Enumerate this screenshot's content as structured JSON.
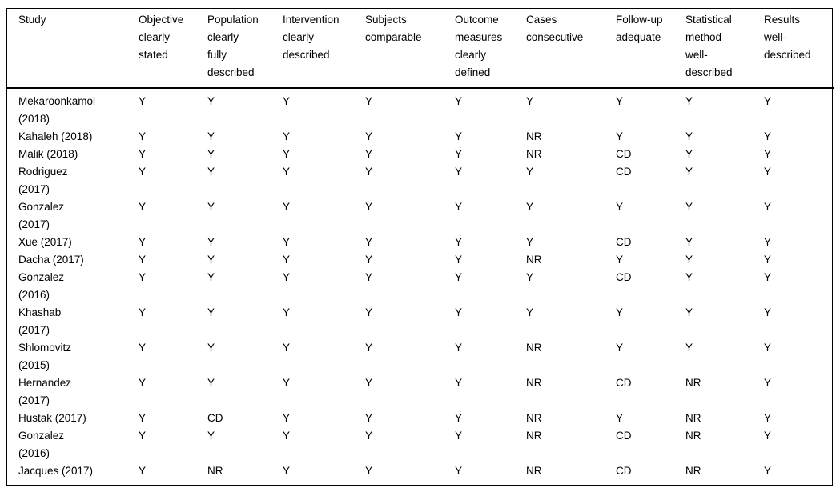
{
  "page": {
    "background_color": "#ffffff",
    "text_color": "#000000",
    "rule_color": "#000000"
  },
  "table": {
    "columns": [
      "Study",
      "Objective\nclearly\nstated",
      "Population\nclearly\nfully\ndescribed",
      "Intervention\nclearly\ndescribed",
      "Subjects\ncomparable",
      "Outcome\nmeasures\nclearly\ndefined",
      "Cases\nconsecutive",
      "Follow-up\nadequate",
      "Statistical\nmethod\nwell-\ndescribed",
      "Results\nwell-\ndescribed"
    ],
    "rows": [
      {
        "study": "Mekaroonkamol\n(2018)",
        "ratings": [
          "Y",
          "Y",
          "Y",
          "Y",
          "Y",
          "Y",
          "Y",
          "Y",
          "Y"
        ]
      },
      {
        "study": "Kahaleh (2018)",
        "ratings": [
          "Y",
          "Y",
          "Y",
          "Y",
          "Y",
          "NR",
          "Y",
          "Y",
          "Y"
        ]
      },
      {
        "study": "Malik (2018)",
        "ratings": [
          "Y",
          "Y",
          "Y",
          "Y",
          "Y",
          "NR",
          "CD",
          "Y",
          "Y"
        ]
      },
      {
        "study": "Rodriguez\n(2017)",
        "ratings": [
          "Y",
          "Y",
          "Y",
          "Y",
          "Y",
          "Y",
          "CD",
          "Y",
          "Y"
        ]
      },
      {
        "study": "Gonzalez\n(2017)",
        "ratings": [
          "Y",
          "Y",
          "Y",
          "Y",
          "Y",
          "Y",
          "Y",
          "Y",
          "Y"
        ]
      },
      {
        "study": "Xue (2017)",
        "ratings": [
          "Y",
          "Y",
          "Y",
          "Y",
          "Y",
          "Y",
          "CD",
          "Y",
          "Y"
        ]
      },
      {
        "study": "Dacha (2017)",
        "ratings": [
          "Y",
          "Y",
          "Y",
          "Y",
          "Y",
          "NR",
          "Y",
          "Y",
          "Y"
        ]
      },
      {
        "study": "Gonzalez\n(2016)",
        "ratings": [
          "Y",
          "Y",
          "Y",
          "Y",
          "Y",
          "Y",
          "CD",
          "Y",
          "Y"
        ]
      },
      {
        "study": "Khashab\n(2017)",
        "ratings": [
          "Y",
          "Y",
          "Y",
          "Y",
          "Y",
          "Y",
          "Y",
          "Y",
          "Y"
        ]
      },
      {
        "study": "Shlomovitz\n(2015)",
        "ratings": [
          "Y",
          "Y",
          "Y",
          "Y",
          "Y",
          "NR",
          "Y",
          "Y",
          "Y"
        ]
      },
      {
        "study": "Hernandez\n(2017)",
        "ratings": [
          "Y",
          "Y",
          "Y",
          "Y",
          "Y",
          "NR",
          "CD",
          "NR",
          "Y"
        ]
      },
      {
        "study": "Hustak (2017)",
        "ratings": [
          "Y",
          "CD",
          "Y",
          "Y",
          "Y",
          "NR",
          "Y",
          "NR",
          "Y"
        ]
      },
      {
        "study": "Gonzalez\n(2016)",
        "ratings": [
          "Y",
          "Y",
          "Y",
          "Y",
          "Y",
          "NR",
          "CD",
          "NR",
          "Y"
        ]
      },
      {
        "study": "Jacques (2017)",
        "ratings": [
          "Y",
          "NR",
          "Y",
          "Y",
          "Y",
          "NR",
          "CD",
          "NR",
          "Y"
        ]
      }
    ]
  }
}
